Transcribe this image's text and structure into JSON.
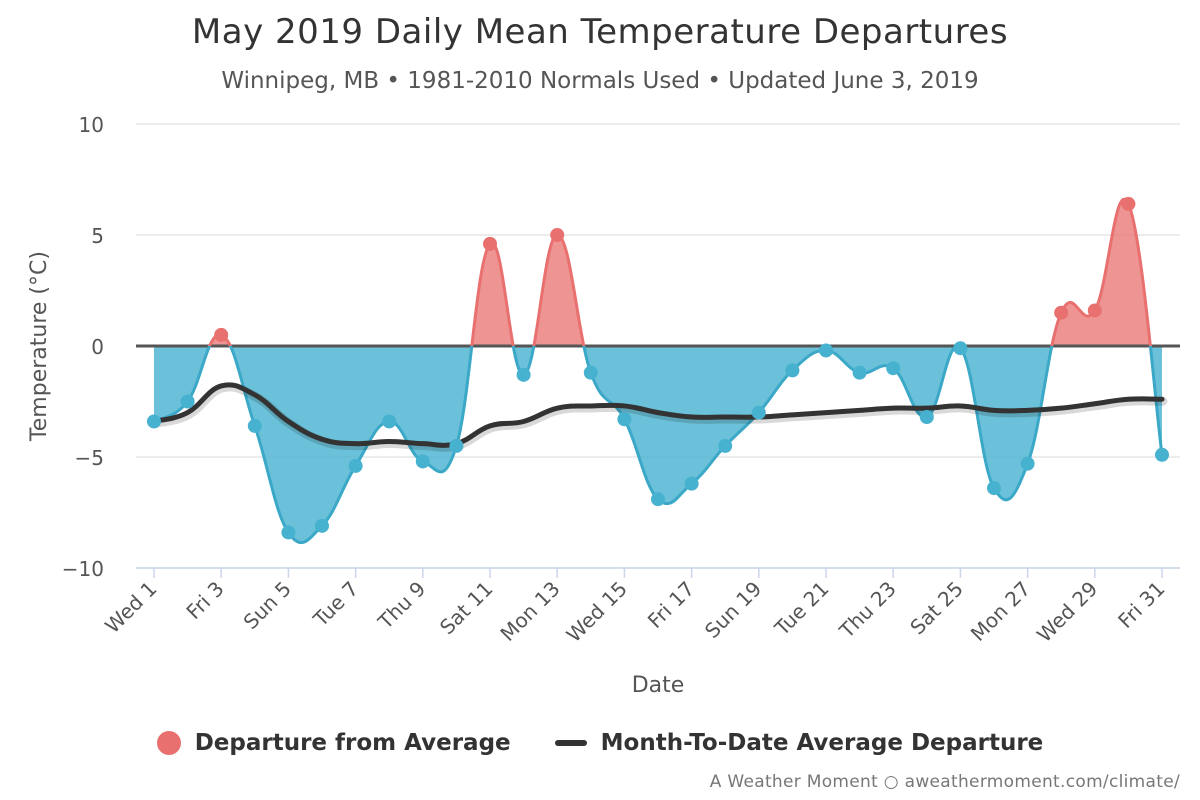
{
  "chart_data": {
    "type": "area",
    "title": "May 2019 Daily Mean Temperature Departures",
    "subtitle": "Winnipeg, MB • 1981-2010 Normals Used • Updated June 3, 2019",
    "xlabel": "Date",
    "ylabel": "Temperature (°C)",
    "ylim": [
      -10,
      10
    ],
    "yticks": [
      -10,
      -5,
      0,
      5,
      10
    ],
    "ytick_labels": [
      "−10",
      "−5",
      "0",
      "5",
      "10"
    ],
    "x": [
      1,
      2,
      3,
      4,
      5,
      6,
      7,
      8,
      9,
      10,
      11,
      12,
      13,
      14,
      15,
      16,
      17,
      18,
      19,
      20,
      21,
      22,
      23,
      24,
      25,
      26,
      27,
      28,
      29,
      30,
      31
    ],
    "xtick_labels": [
      "Wed 1",
      "Fri 3",
      "Sun 5",
      "Tue 7",
      "Thu 9",
      "Sat 11",
      "Mon 13",
      "Wed 15",
      "Fri 17",
      "Sun 19",
      "Tue 21",
      "Thu 23",
      "Sat 25",
      "Mon 27",
      "Wed 29",
      "Fri 31"
    ],
    "grid": true,
    "legend_position": "bottom",
    "series": [
      {
        "name": "Departure from Average",
        "positive_color": "#e8706f",
        "negative_color": "#46b2d0",
        "values": [
          -3.4,
          -2.5,
          0.5,
          -3.6,
          -8.4,
          -8.1,
          -5.4,
          -3.4,
          -5.2,
          -4.5,
          4.6,
          -1.3,
          5.0,
          -1.2,
          -3.3,
          -6.9,
          -6.2,
          -4.5,
          -3.0,
          -1.1,
          -0.2,
          -1.2,
          -1.0,
          -3.2,
          -0.1,
          -6.4,
          -5.3,
          1.5,
          1.6,
          6.4,
          -4.9
        ]
      },
      {
        "name": "Month-To-Date Average Departure",
        "color": "#333333",
        "values": [
          -3.4,
          -3.0,
          -1.8,
          -2.2,
          -3.4,
          -4.2,
          -4.4,
          -4.3,
          -4.4,
          -4.4,
          -3.6,
          -3.4,
          -2.8,
          -2.7,
          -2.7,
          -3.0,
          -3.2,
          -3.2,
          -3.2,
          -3.1,
          -3.0,
          -2.9,
          -2.8,
          -2.8,
          -2.7,
          -2.9,
          -2.9,
          -2.8,
          -2.6,
          -2.4,
          -2.4
        ]
      }
    ]
  },
  "credits": "A Weather Moment ○ aweathermoment.com/climate/"
}
